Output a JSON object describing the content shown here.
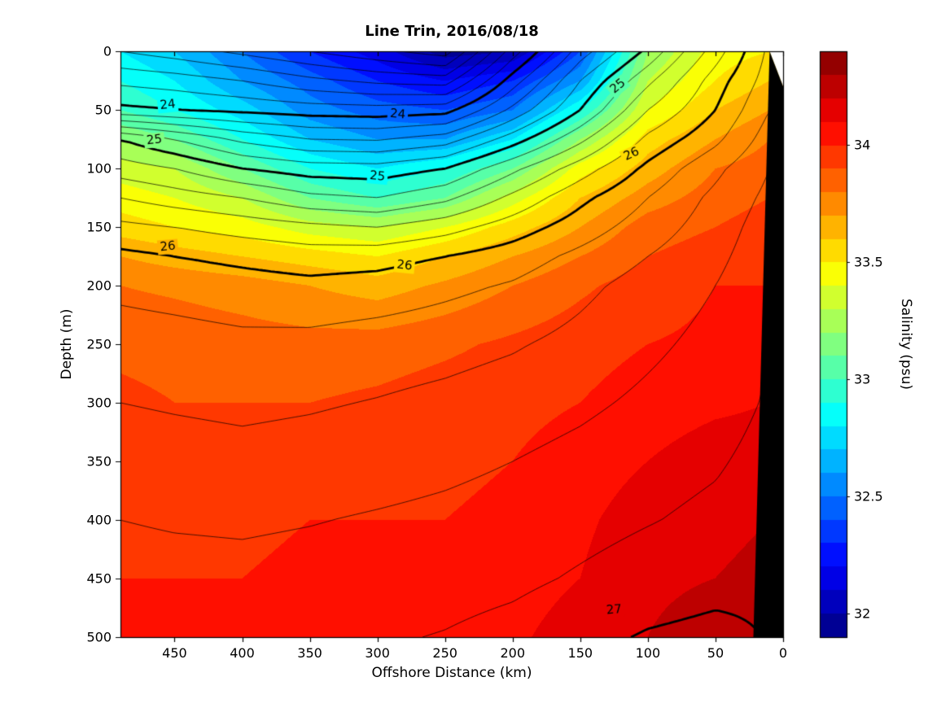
{
  "figure": {
    "title": "Line Trin, 2016/08/18",
    "xlabel": "Offshore Distance (km)",
    "ylabel": "Depth (m)",
    "colorbar_label": "Salinity (psu)"
  },
  "chart_data": {
    "type": "heatmap",
    "title": "Line Trin, 2016/08/18",
    "xlabel": "Offshore Distance (km)",
    "ylabel": "Depth (m)",
    "x_range": [
      490,
      0
    ],
    "y_range": [
      0,
      500
    ],
    "x_axis_reversed": true,
    "y_axis_inverted": true,
    "x_ticks": [
      450,
      400,
      350,
      300,
      250,
      200,
      150,
      100,
      50,
      0
    ],
    "y_ticks": [
      0,
      50,
      100,
      150,
      200,
      250,
      300,
      350,
      400,
      450,
      500
    ],
    "colormap": "jet",
    "color_range": [
      31.9,
      34.4
    ],
    "band_step": 0.1,
    "colorbar_ticks": [
      32,
      32.5,
      33,
      33.5,
      34
    ],
    "colorbar_label": "Salinity (psu)",
    "salinity_grid": {
      "x_km": [
        490,
        450,
        400,
        350,
        300,
        250,
        200,
        150,
        100,
        50,
        10
      ],
      "depth_m": [
        0,
        25,
        50,
        75,
        100,
        125,
        150,
        175,
        200,
        250,
        300,
        350,
        400,
        450,
        500
      ],
      "values_psu": [
        [
          32.8,
          32.7,
          32.5,
          32.3,
          32.15,
          31.95,
          32.0,
          32.4,
          33.2,
          33.45,
          33.5
        ],
        [
          32.9,
          32.8,
          32.6,
          32.45,
          32.3,
          32.2,
          32.3,
          32.6,
          33.3,
          33.5,
          33.6
        ],
        [
          33.0,
          32.9,
          32.75,
          32.55,
          32.45,
          32.4,
          32.5,
          32.9,
          33.4,
          33.6,
          33.7
        ],
        [
          33.2,
          33.1,
          32.9,
          32.7,
          32.6,
          32.6,
          32.8,
          33.2,
          33.55,
          33.7,
          33.8
        ],
        [
          33.35,
          33.3,
          33.1,
          32.9,
          32.8,
          32.9,
          33.1,
          33.45,
          33.65,
          33.8,
          33.85
        ],
        [
          33.45,
          33.4,
          33.3,
          33.1,
          33.0,
          33.1,
          33.35,
          33.6,
          33.75,
          33.85,
          33.9
        ],
        [
          33.55,
          33.5,
          33.45,
          33.35,
          33.3,
          33.4,
          33.55,
          33.7,
          33.85,
          33.9,
          33.95
        ],
        [
          33.7,
          33.65,
          33.6,
          33.55,
          33.5,
          33.6,
          33.7,
          33.8,
          33.9,
          33.95,
          34.0
        ],
        [
          33.8,
          33.78,
          33.75,
          33.7,
          33.65,
          33.72,
          33.8,
          33.88,
          33.95,
          34.0,
          34.0
        ],
        [
          33.88,
          33.87,
          33.85,
          33.84,
          33.85,
          33.88,
          33.92,
          33.96,
          34.0,
          34.02,
          34.05
        ],
        [
          33.92,
          33.9,
          33.9,
          33.9,
          33.92,
          33.95,
          33.97,
          34.0,
          34.05,
          34.08,
          34.1
        ],
        [
          33.96,
          33.95,
          33.95,
          33.96,
          33.97,
          33.98,
          34.0,
          34.05,
          34.1,
          34.15,
          34.15
        ],
        [
          33.98,
          33.97,
          33.98,
          34.0,
          34.0,
          34.0,
          34.02,
          34.08,
          34.15,
          34.18,
          34.2
        ],
        [
          34.0,
          34.0,
          34.0,
          34.02,
          34.02,
          34.03,
          34.05,
          34.1,
          34.18,
          34.2,
          34.22
        ],
        [
          34.02,
          34.02,
          34.02,
          34.03,
          34.04,
          34.05,
          34.08,
          34.15,
          34.2,
          34.25,
          34.22
        ]
      ]
    },
    "density_contours": {
      "description": "sigma-theta isopycnal contour overlay, thin lines every 0.2, bold at integers",
      "x_km": [
        490,
        450,
        400,
        350,
        300,
        250,
        200,
        150,
        100,
        50,
        10
      ],
      "depth_m": [
        0,
        25,
        50,
        75,
        100,
        125,
        150,
        175,
        200,
        250,
        300,
        350,
        400,
        450,
        500
      ],
      "sigma_theta": [
        [
          23.4,
          23.3,
          23.15,
          23.0,
          22.85,
          22.7,
          23.7,
          24.5,
          25.05,
          25.7,
          26.25
        ],
        [
          23.75,
          23.7,
          23.6,
          23.45,
          23.35,
          23.3,
          24.1,
          24.8,
          25.35,
          25.9,
          26.3
        ],
        [
          24.05,
          24.0,
          23.95,
          23.9,
          23.88,
          23.92,
          24.45,
          25.0,
          25.6,
          26.0,
          26.4
        ],
        [
          25.0,
          24.8,
          24.55,
          24.4,
          24.38,
          24.5,
          24.9,
          25.35,
          25.85,
          26.15,
          26.5
        ],
        [
          25.3,
          25.2,
          25.0,
          24.9,
          24.88,
          25.0,
          25.35,
          25.7,
          26.05,
          26.35,
          26.6
        ],
        [
          25.6,
          25.5,
          25.4,
          25.25,
          25.2,
          25.35,
          25.65,
          25.95,
          26.2,
          26.45,
          26.65
        ],
        [
          25.85,
          25.8,
          25.72,
          25.65,
          25.6,
          25.72,
          25.9,
          26.1,
          26.3,
          26.5,
          26.7
        ],
        [
          26.05,
          26.0,
          25.95,
          25.9,
          25.92,
          26.0,
          26.1,
          26.25,
          26.4,
          26.55,
          26.73
        ],
        [
          26.15,
          26.12,
          26.08,
          26.05,
          26.08,
          26.15,
          26.22,
          26.35,
          26.48,
          26.6,
          26.76
        ],
        [
          26.3,
          26.28,
          26.25,
          26.26,
          26.3,
          26.33,
          26.38,
          26.46,
          26.56,
          26.66,
          26.8
        ],
        [
          26.4,
          26.38,
          26.36,
          26.38,
          26.41,
          26.45,
          26.5,
          26.56,
          26.64,
          26.72,
          26.82
        ],
        [
          26.5,
          26.48,
          26.46,
          26.48,
          26.51,
          26.55,
          26.6,
          26.66,
          26.73,
          26.78,
          26.86
        ],
        [
          26.6,
          26.58,
          26.57,
          26.59,
          26.62,
          26.65,
          26.69,
          26.74,
          26.79,
          26.84,
          26.9
        ],
        [
          26.68,
          26.67,
          26.66,
          26.68,
          26.7,
          26.73,
          26.76,
          26.82,
          26.88,
          26.93,
          26.96
        ],
        [
          26.75,
          26.74,
          26.74,
          26.76,
          26.78,
          26.81,
          26.86,
          26.94,
          27.02,
          27.06,
          26.99
        ]
      ],
      "level_min": 22.6,
      "level_max": 27.0,
      "levels_thin_step": 0.2,
      "levels_bold": [
        24,
        25,
        26,
        27
      ]
    },
    "contour_labels": [
      {
        "text": "24",
        "km": 455,
        "depth": 46,
        "rot": -6
      },
      {
        "text": "24",
        "km": 285,
        "depth": 54,
        "rot": 5
      },
      {
        "text": "25",
        "km": 465,
        "depth": 76,
        "rot": -6
      },
      {
        "text": "25",
        "km": 300,
        "depth": 107,
        "rot": 5
      },
      {
        "text": "25",
        "km": 122,
        "depth": 30,
        "rot": -40
      },
      {
        "text": "26",
        "km": 455,
        "depth": 167,
        "rot": -5
      },
      {
        "text": "26",
        "km": 280,
        "depth": 183,
        "rot": 6
      },
      {
        "text": "26",
        "km": 112,
        "depth": 88,
        "rot": -25
      },
      {
        "text": "27",
        "km": 125,
        "depth": 477,
        "rot": -5
      }
    ],
    "coast_mask": {
      "black_polygon_km_depth": [
        [
          10,
          0
        ],
        [
          22,
          500
        ],
        [
          0,
          500
        ],
        [
          0,
          30
        ]
      ],
      "white_polygon_km_depth": [
        [
          10,
          0
        ],
        [
          0,
          0
        ],
        [
          0,
          30
        ]
      ]
    },
    "line_colors": {
      "contour": "#000000",
      "axis": "#000000"
    }
  }
}
